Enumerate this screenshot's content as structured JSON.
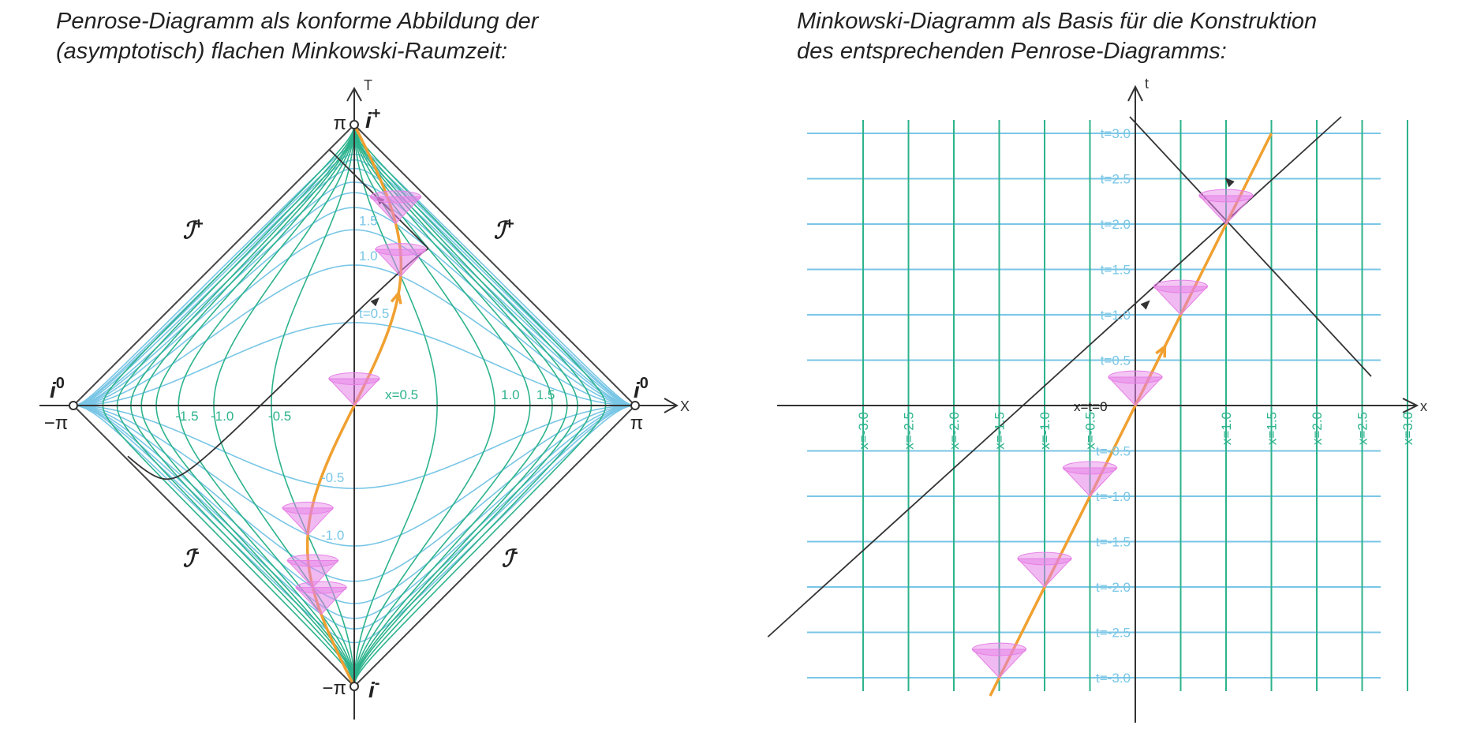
{
  "left_panel": {
    "caption_line1": "Penrose-Diagramm als konforme Abbildung der",
    "caption_line2": "(asymptotisch) flachen Minkowski-Raumzeit:",
    "axis_T": "T",
    "axis_X": "X",
    "pi_top": "π",
    "pi_bottom": "−π",
    "pi_right": "π",
    "pi_left": "−π",
    "i_plus_base": "i",
    "i_plus_sup": "+",
    "i_minus_base": "i",
    "i_minus_sup": "-",
    "i0_left_base": "i",
    "i0_left_sup": "0",
    "i0_right_base": "i",
    "i0_right_sup": "0",
    "scri_base": "ℐ",
    "scri_plus_sup": "+",
    "scri_minus_sup": "-",
    "t_labels": [
      {
        "text": "1.5",
        "t": 1.5
      },
      {
        "text": "1.0",
        "t": 1.0
      },
      {
        "text": "t=0.5",
        "t": 0.5
      },
      {
        "text": "-0.5",
        "t": -0.5
      },
      {
        "text": "-1.0",
        "t": -1.0
      }
    ],
    "x_labels": [
      {
        "text": "x=0.5",
        "x": 0.5
      },
      {
        "text": "1.0",
        "x": 1.0
      },
      {
        "text": "1.5",
        "x": 1.5
      },
      {
        "text": "-1.5",
        "x": -1.5
      },
      {
        "text": "-1.0",
        "x": -1.0
      },
      {
        "text": "-0.5",
        "x": -0.5
      }
    ]
  },
  "right_panel": {
    "caption_line1": "Minkowski-Diagramm als Basis für die Konstruktion",
    "caption_line2": "des entsprechenden Penrose-Diagramms:",
    "axis_t": "t",
    "axis_x": "x",
    "origin_label": "x=t=0",
    "t_labels": [
      "t=3.0",
      "t=2.5",
      "t=2.0",
      "t=1.5",
      "t=1.0",
      "t=0.5",
      "t=-0.5",
      "t=-1.0",
      "t=-1.5",
      "t=-2.0",
      "t=-2.5",
      "t=-3.0"
    ],
    "x_labels": [
      "x=-3.0",
      "x=-2.5",
      "x=-2.0",
      "x=-1.5",
      "x=-1.0",
      "x=-0.5",
      "x=1.0",
      "x=1.5",
      "x=2.0",
      "x=2.5",
      "x=3.0"
    ]
  },
  "worldline": {
    "description_free": true,
    "x_at_t0": 0,
    "velocity": 0.5,
    "events_t": [
      -3,
      -2,
      -1,
      0,
      1,
      2
    ],
    "t_range": [
      -3.2,
      3.0
    ]
  },
  "light_ray": {
    "emit": {
      "x": -4.0,
      "t": -2.5
    },
    "reflect": {
      "x": 1.5,
      "t": 2.0
    }
  },
  "colors": {
    "x_lines": "#2db38c",
    "t_lines": "#79c6e6",
    "worldline": "#f0a030",
    "cone": "#e680e6",
    "axis": "#333333",
    "light_ray": "#333333",
    "caption": "#222222"
  },
  "grid_values": [
    -3.0,
    -2.5,
    -2.0,
    -1.5,
    -1.0,
    -0.5,
    0.0,
    0.5,
    1.0,
    1.5,
    2.0,
    2.5,
    3.0
  ]
}
